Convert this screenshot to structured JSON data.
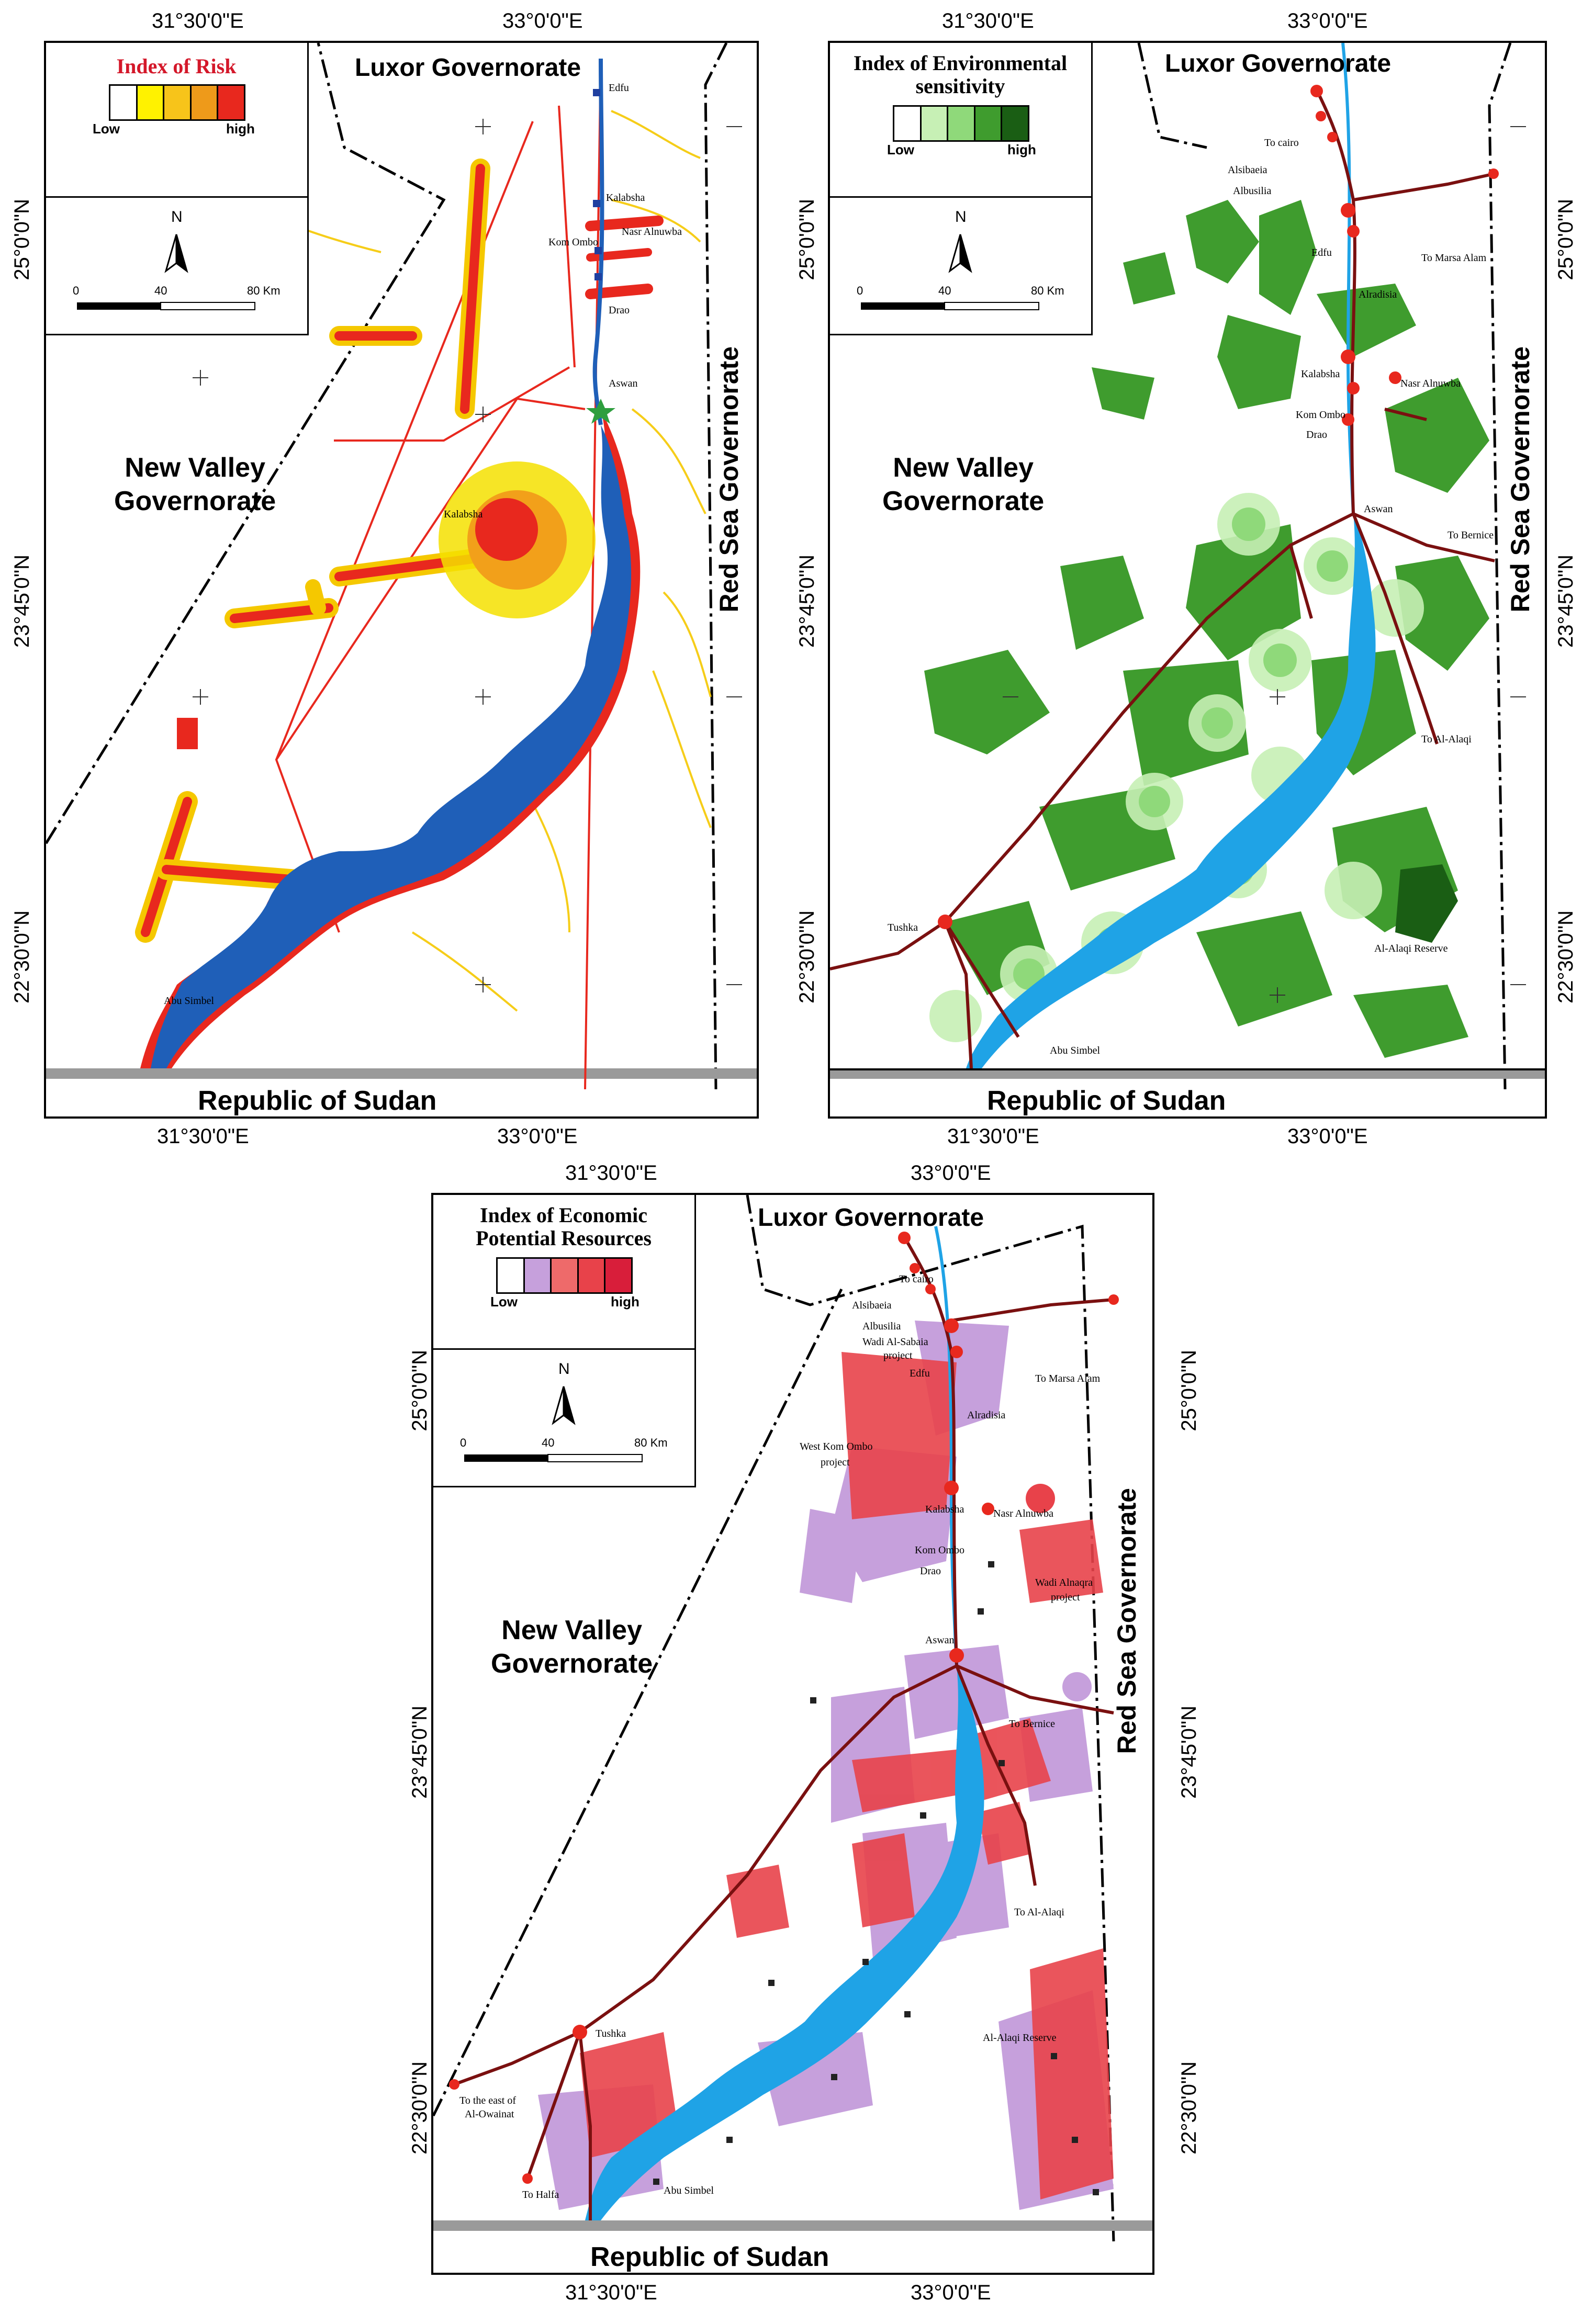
{
  "coordinates": {
    "lon_3130": "31°30'0\"E",
    "lon_3300": "33°0'0\"E",
    "lat_2500": "25°0'0\"N",
    "lat_2345": "23°45'0\"N",
    "lat_2230": "22°30'0\"N"
  },
  "regions": {
    "luxor": "Luxor Governorate",
    "new_valley_1": "New Valley",
    "new_valley_2": "Governorate",
    "red_sea": "Red Sea Governorate",
    "sudan": "Republic of Sudan"
  },
  "north": "N",
  "scale": {
    "zero": "0",
    "mid": "40",
    "end": "80 Km"
  },
  "legend_low": "Low",
  "legend_high": "high",
  "colors": {
    "lake": "#1f5fb8",
    "lake_light": "#1fa3e6",
    "veg": "#2e8b1e",
    "road": "#7a1010",
    "risk_high": "#e8281e"
  },
  "panels": {
    "risk": {
      "legend_title": "Index of Risk",
      "ramp": [
        "#ffffff",
        "#fff200",
        "#f7c41a",
        "#ee9a1a",
        "#e8281e"
      ],
      "places": [
        "Edfu",
        "Kalabsha",
        "Kom Ombo",
        "Nasr Alnuwba",
        "Drao",
        "Aswan",
        "Kalabsha",
        "Abu Simbel"
      ]
    },
    "env": {
      "legend_title_1": "Index of Environmental",
      "legend_title_2": "sensitivity",
      "ramp": [
        "#ffffff",
        "#c7f0b5",
        "#8fd97a",
        "#3f9c2e",
        "#1a5e14"
      ],
      "places": [
        "To cairo",
        "Alsibaeia",
        "Albusilia",
        "Edfu",
        "To Marsa Alam",
        "Alradisia",
        "Kalabsha",
        "Nasr Alnuwba",
        "Kom Ombo",
        "Drao",
        "Aswan",
        "To Bernice",
        "To Al-Alaqi",
        "Tushka",
        "Al-Alaqi Reserve",
        "Abu Simbel"
      ]
    },
    "econ": {
      "legend_title_1": "Index of Economic",
      "legend_title_2": "Potential Resources",
      "ramp": [
        "#ffffff",
        "#c6a0dc",
        "#ee6a6a",
        "#e8424a",
        "#d81e3a"
      ],
      "places": [
        "To cairo",
        "Alsibaeia",
        "Albusilia",
        "Wadi Al-Sabaia",
        "project",
        "Edfu",
        "To Marsa Alam",
        "Alradisia",
        "West Kom Ombo",
        "project",
        "Kalabsha",
        "Nasr Alnuwba",
        "Kom Ombo",
        "Drao",
        "Wadi Alnaqra",
        "project",
        "Aswan",
        "To Bernice",
        "To Al-Alaqi",
        "Tushka",
        "Al-Alaqi Reserve",
        "To the east of",
        "Al-Owainat",
        "To Halfa",
        "Abu Simbel"
      ]
    }
  }
}
